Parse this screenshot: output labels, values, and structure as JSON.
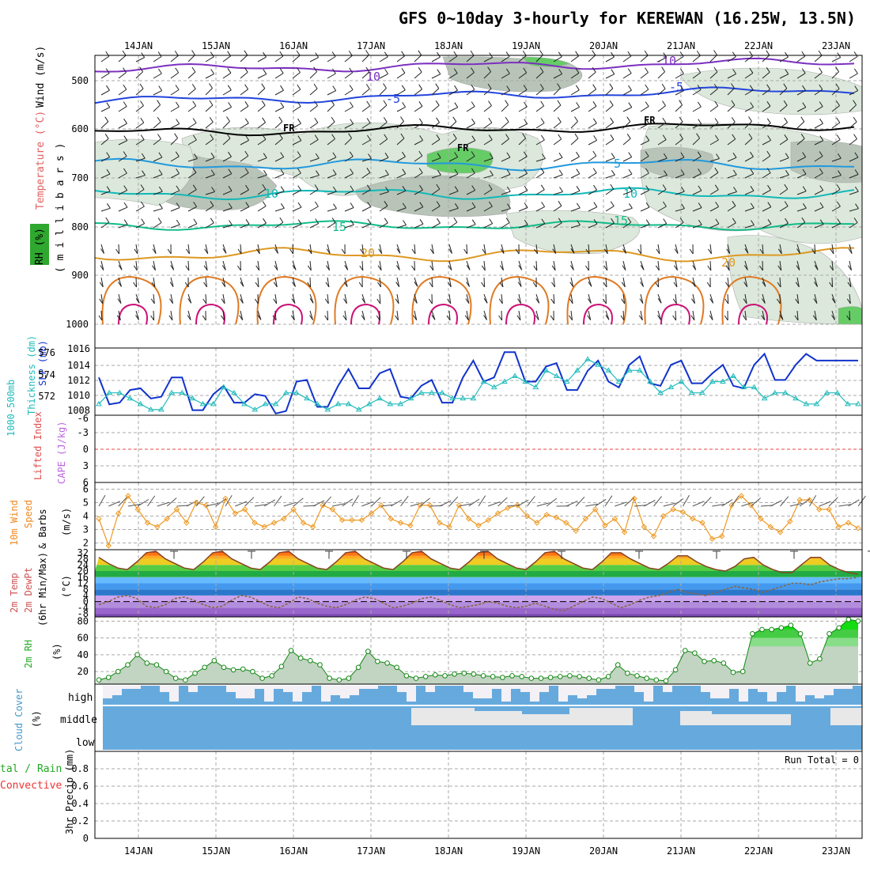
{
  "title": "GFS 0~10day 3-hourly for KEREWAN (16.25W, 13.5N)",
  "days": [
    "14JAN",
    "15JAN",
    "16JAN",
    "17JAN",
    "18JAN",
    "19JAN",
    "20JAN",
    "21JAN",
    "22JAN",
    "23JAN"
  ],
  "colors": {
    "temp_iso_cold": "#7b2fbf",
    "temp_iso_blue": "#2244dd",
    "temp_iso_cyan": "#2299dd",
    "temp_iso_teal": "#11b8b8",
    "temp_iso_green": "#11bb88",
    "temp_iso_orange": "#dd9922",
    "rh_shade": "#a9b9a9",
    "slp": "#1133cc",
    "thickness": "#22bbbb",
    "wind": "#ee9922",
    "rh_line": "#118811",
    "cloud": "#66aadd",
    "precip_total": "#22cc22",
    "precip_conv": "#ee3333"
  },
  "panels": {
    "pressure": {
      "label_rh": "RH (%)",
      "label_temp": "Temperature (°C)",
      "label_wind": "Wind (m/s)",
      "label_units": "( m i l l i b a r s )",
      "ticks": [
        "500",
        "600",
        "700",
        "800",
        "900",
        "1000"
      ],
      "isotherm_labels": [
        "-10",
        "-5",
        "FR",
        "-5",
        "10",
        "15",
        "20"
      ],
      "fr_label": "FR"
    },
    "slp": {
      "label_thick": "1000-500mb",
      "label_thick2": "Thickness (dm)",
      "label_slp": "SLP (mb)",
      "left_ticks": [
        "576",
        "574",
        "572"
      ],
      "right_ticks": [
        "1016",
        "1014",
        "1012",
        "1010",
        "1008"
      ]
    },
    "cape": {
      "label_li": "Lifted Index",
      "label_cape": "CAPE (J/kg)",
      "ticks": [
        "-6",
        "-3",
        "0",
        "3",
        "6"
      ]
    },
    "wind": {
      "label1": "10m Wind",
      "label2": "Speed",
      "label3": "& Barbs",
      "units": "(m/s)",
      "ticks": [
        "6",
        "5",
        "4",
        "3",
        "2"
      ]
    },
    "temp": {
      "label1": "2m Temp",
      "label2": "2m DewPt",
      "label3": "(6hr Min/Max)",
      "units": "(°C)",
      "ticks": [
        "32",
        "28",
        "24",
        "20",
        "16",
        "12",
        "8",
        "4",
        "0",
        "-4",
        "-8"
      ]
    },
    "rh": {
      "label": "2m RH",
      "units": "(%)",
      "ticks": [
        "80",
        "60",
        "40",
        "20"
      ]
    },
    "cloud": {
      "label": "Cloud Cover",
      "units": "(%)",
      "levels": [
        "high",
        "middle",
        "low"
      ]
    },
    "precip": {
      "label_total": "tal / Rain",
      "label_conv": "Convective",
      "label_axis": "3hr Precip (mm)",
      "run_total": "Run Total = 0",
      "ticks": [
        "0.8",
        "0.6",
        "0.4",
        "0.2",
        "0"
      ]
    }
  },
  "chart_data": [
    {
      "type": "line",
      "title": "1000-500mb Thickness (dm) & SLP (mb)",
      "series": [
        {
          "name": "SLP (mb)",
          "values": [
            1012.5,
            1009.3,
            1009.5,
            1011,
            1011.2,
            1010,
            1010.2,
            1012.5,
            1012.5,
            1008.6,
            1008.6,
            1010.5,
            1011.5,
            1009.5,
            1009.5,
            1010.5,
            1010.3,
            1008.2,
            1008.5,
            1012,
            1012.2,
            1009,
            1009,
            1011.5,
            1013.5,
            1011.2,
            1011.2,
            1013,
            1013.5,
            1010.2,
            1010,
            1011.5,
            1012.2,
            1009.5,
            1009.5,
            1012.5,
            1014.5,
            1012,
            1012.5,
            1015.5,
            1015.5,
            1012,
            1012,
            1013.8,
            1014.2,
            1011,
            1011,
            1013.3,
            1014.5,
            1012,
            1011.3,
            1014,
            1015,
            1011.8,
            1011.5,
            1014,
            1014.5,
            1011.8,
            1011.8,
            1013,
            1014,
            1011.5,
            1011.2,
            1014,
            1015.3,
            1012.2,
            1012.2,
            1014,
            1015.3,
            1014.5,
            1014.5,
            1014.5,
            1014.5,
            1014.5
          ]
        },
        {
          "name": "Thickness (dm)",
          "values": [
            572,
            573,
            573,
            572.5,
            572,
            571.5,
            571.5,
            573,
            573,
            572.5,
            572,
            572,
            573.5,
            573,
            572,
            571.5,
            572,
            572,
            573,
            573,
            572.5,
            572,
            571.5,
            572,
            572,
            571.5,
            572,
            572.5,
            572,
            572,
            572.5,
            573,
            573,
            573,
            572.5,
            572.5,
            572.5,
            574,
            573.5,
            574,
            574.5,
            574,
            573.5,
            575,
            574.5,
            574,
            575,
            576,
            575.5,
            575,
            574,
            575,
            575,
            574,
            573,
            573.5,
            574,
            573,
            573,
            574,
            574,
            574.5,
            573.5,
            573.5,
            572.5,
            573,
            573,
            572.5,
            572,
            572,
            573,
            573,
            572,
            572
          ]
        }
      ],
      "ylim_slp": [
        1008,
        1016
      ],
      "ylim_thickness": [
        571,
        577
      ]
    },
    {
      "type": "line",
      "title": "10m Wind Speed & Barbs (m/s)",
      "series": [
        {
          "name": "10m Wind Speed",
          "values": [
            3.8,
            1.8,
            4.2,
            5.5,
            4.5,
            3.5,
            3.2,
            3.8,
            4.5,
            3.5,
            5,
            4.8,
            3.2,
            5.3,
            4.2,
            4.5,
            3.5,
            3.2,
            3.5,
            3.8,
            4.5,
            3.5,
            3.2,
            4.8,
            4.5,
            3.7,
            3.7,
            3.7,
            4.2,
            4.8,
            3.8,
            3.5,
            3.3,
            4.8,
            4.8,
            3.5,
            3.2,
            4.8,
            3.8,
            3.3,
            3.7,
            4.2,
            4.6,
            4.8,
            4,
            3.5,
            4.1,
            3.9,
            3.5,
            2.9,
            3.8,
            4.5,
            3.3,
            3.8,
            2.8,
            5.3,
            3.2,
            2.5,
            4,
            4.5,
            4.3,
            3.8,
            3.5,
            2.3,
            2.5,
            4.8,
            5.5,
            4.8,
            3.8,
            3.2,
            2.8,
            3.6,
            5.2,
            5.2,
            4.5,
            4.5,
            3.2,
            3.5,
            3.1
          ]
        }
      ],
      "ylim": [
        1.5,
        6.5
      ]
    },
    {
      "type": "area",
      "title": "2m Temp / 2m DewPt (6hr Min/Max) (°C)",
      "series": [
        {
          "name": "2m Temp",
          "values": [
            29,
            25,
            22,
            21,
            26,
            32,
            33,
            28,
            25,
            22,
            21,
            26,
            32,
            33,
            28,
            25,
            22,
            21,
            26,
            32,
            33,
            28,
            25,
            22,
            21,
            26,
            32,
            33,
            28,
            25,
            22,
            21,
            26,
            32,
            33,
            28,
            25,
            22,
            21,
            26,
            32,
            33,
            28,
            25,
            22,
            21,
            26,
            32,
            33,
            28,
            25,
            22,
            21,
            26,
            32,
            32,
            28,
            25,
            22,
            21,
            25,
            30,
            30,
            26,
            23,
            21,
            20,
            23,
            28,
            29,
            24,
            21,
            19,
            19,
            24,
            29,
            29,
            24,
            21,
            19,
            18
          ]
        },
        {
          "name": "2m DewPt",
          "values": [
            -2,
            0,
            3,
            4,
            2,
            -3,
            -4,
            -2,
            2,
            3,
            1,
            -2,
            -4,
            -3,
            1,
            4,
            3,
            0,
            -3,
            -4,
            -1,
            3,
            2,
            -1,
            -3,
            -4,
            -2,
            1,
            3,
            2,
            -1,
            -4,
            -3,
            -1,
            2,
            3,
            1,
            -2,
            -4,
            -3,
            -2,
            0,
            -1,
            -3,
            -4,
            -3,
            -1,
            -3,
            -5,
            -6,
            -3,
            0,
            3,
            2,
            -1,
            -4,
            -2,
            1,
            3,
            4,
            6,
            8,
            6,
            5,
            4,
            6,
            8,
            10,
            9,
            8,
            6,
            8,
            10,
            12,
            12,
            11,
            13,
            14,
            15,
            15,
            16
          ]
        }
      ],
      "ylim": [
        -10,
        34
      ]
    },
    {
      "type": "area",
      "title": "2m RH (%)",
      "series": [
        {
          "name": "2m RH",
          "values": [
            10,
            13,
            20,
            28,
            40,
            30,
            28,
            20,
            12,
            10,
            18,
            25,
            33,
            25,
            22,
            23,
            20,
            12,
            15,
            26,
            45,
            36,
            33,
            28,
            12,
            10,
            12,
            25,
            44,
            32,
            30,
            25,
            15,
            12,
            14,
            16,
            15,
            17,
            18,
            17,
            15,
            14,
            13,
            15,
            14,
            12,
            12,
            13,
            14,
            15,
            14,
            12,
            10,
            14,
            28,
            18,
            15,
            12,
            10,
            9,
            22,
            45,
            42,
            32,
            33,
            30,
            19,
            20,
            65,
            70,
            70,
            72,
            75,
            65,
            30,
            35,
            65,
            72,
            82,
            80
          ]
        }
      ],
      "ylim": [
        5,
        85
      ]
    },
    {
      "type": "bar",
      "title": "3hr Precip (mm)",
      "series": [
        {
          "name": "Total / Rain",
          "values": []
        },
        {
          "name": "Convective",
          "values": []
        }
      ],
      "ylim": [
        0,
        1
      ],
      "run_total": 0
    }
  ]
}
